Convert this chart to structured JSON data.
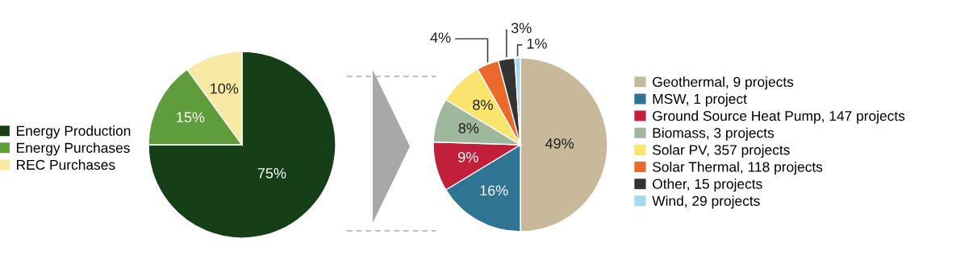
{
  "chart_data": [
    {
      "type": "pie",
      "categories": [
        "Energy Production",
        "Energy Purchases",
        "REC Purchases"
      ],
      "values": [
        75,
        15,
        10
      ],
      "colors": [
        "#173f17",
        "#5e9c3c",
        "#f7e9a3"
      ],
      "value_labels": [
        "75%",
        "15%",
        "10%"
      ],
      "legend": "left"
    },
    {
      "type": "pie",
      "categories": [
        "Geothermal, 9 projects",
        "MSW, 1 project",
        "Ground Source Heat Pump, 147 projects",
        "Biomass, 3 projects",
        "Solar PV, 357 projects",
        "Solar Thermal, 118 projects",
        "Other, 15 projects",
        "Wind, 29 projects"
      ],
      "values": [
        49,
        16,
        9,
        8,
        8,
        4,
        3,
        1
      ],
      "colors": [
        "#c9b99b",
        "#2f7493",
        "#c11f3a",
        "#9fb79c",
        "#f9e46e",
        "#ea6a2b",
        "#333333",
        "#a3d9f0"
      ],
      "value_labels": [
        "49%",
        "16%",
        "9%",
        "8%",
        "8%",
        "4%",
        "3%",
        "1%"
      ],
      "legend": "right"
    }
  ]
}
